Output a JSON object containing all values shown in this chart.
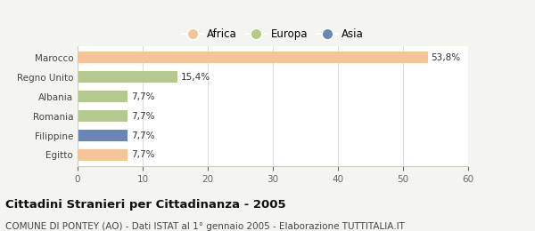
{
  "categories": [
    "Egitto",
    "Filippine",
    "Romania",
    "Albania",
    "Regno Unito",
    "Marocco"
  ],
  "values": [
    7.7,
    7.7,
    7.7,
    7.7,
    15.4,
    53.8
  ],
  "labels": [
    "7,7%",
    "7,7%",
    "7,7%",
    "7,7%",
    "15,4%",
    "53,8%"
  ],
  "colors": [
    "#f5c497",
    "#6b85b5",
    "#b5c98e",
    "#b5c98e",
    "#b5c98e",
    "#f5c497"
  ],
  "legend_items": [
    {
      "label": "Africa",
      "color": "#f5c497"
    },
    {
      "label": "Europa",
      "color": "#b5c98e"
    },
    {
      "label": "Asia",
      "color": "#6b85b5"
    }
  ],
  "xlim": [
    0,
    60
  ],
  "xticks": [
    0,
    10,
    20,
    30,
    40,
    50,
    60
  ],
  "title": "Cittadini Stranieri per Cittadinanza - 2005",
  "subtitle": "COMUNE DI PONTEY (AO) - Dati ISTAT al 1° gennaio 2005 - Elaborazione TUTTITALIA.IT",
  "background_color": "#f5f5f0",
  "bar_background": "#ffffff",
  "title_fontsize": 9.5,
  "subtitle_fontsize": 7.5,
  "label_fontsize": 7.5,
  "tick_fontsize": 7.5,
  "legend_fontsize": 8.5
}
